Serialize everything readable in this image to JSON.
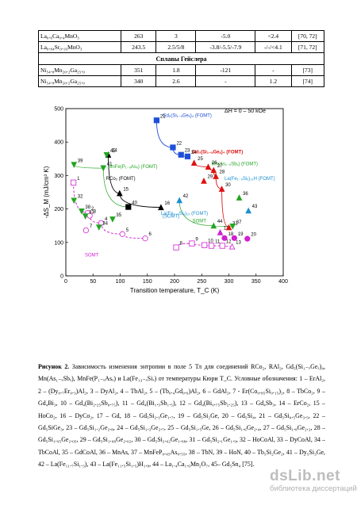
{
  "table": {
    "rows_top": [
      {
        "formula": "La₀.₆Ca₀.₄MnO₃",
        "c1": "263",
        "c2": "3",
        "c3": "-5.0",
        "c4": "<2.4",
        "ref": "[70, 72]"
      },
      {
        "formula": "La₀.₈₄Sr₀.₁₆MnO₃",
        "c1": "243.5",
        "c2": "2.5/5/8",
        "c3": "-3.8/-5.5/-7.9",
        "c4": "-/-/<4.1",
        "ref": "[71, 72]"
      }
    ],
    "section_title": "Сплавы Гейслера",
    "rows_bottom": [
      {
        "formula": "Ni₅₄.₈Mn₂₀.₂Ga₂₅.₀",
        "c1": "351",
        "c2": "1.8",
        "c3": "-121",
        "c4": "-",
        "ref": "[73]"
      },
      {
        "formula": "Ni₅₄.₈Mn₂₀.₂Ga₂₅.₀",
        "c1": "340",
        "c2": "2.6",
        "c3": "-",
        "c4": "1.2",
        "ref": "[74]"
      }
    ]
  },
  "chart_data": {
    "type": "scatter",
    "xlabel": "Transition temperature, T_C (K)",
    "ylabel": "-ΔS_M (mJ/cm³ K)",
    "xlim": [
      0,
      400
    ],
    "ylim": [
      0,
      500
    ],
    "xticks": [
      "0",
      "50",
      "100",
      "150",
      "200",
      "250",
      "300",
      "350",
      "400"
    ],
    "yticks": [
      "0",
      "100",
      "200",
      "300",
      "400",
      "500"
    ],
    "field_annotation": "ΔH = 0 – 50 kOe",
    "group_labels": [
      {
        "text": "Gd₅(Si₁₋ₓGeₓ)₄ (FOMT)",
        "color": "#1f4fd8"
      },
      {
        "text": "Gd₅(Si₁₋ₓGeₓ)₄ (FOMT)",
        "color": "#e01010"
      },
      {
        "text": "Mn(As₁₋ₓSbₓ) (FOMT)",
        "color": "#23a523"
      },
      {
        "text": "MnFe(P₁₋ₓAsₓ) (FOMT)",
        "color": "#23a523"
      },
      {
        "text": "La(Fe₁₋ₓSiₓ)₁₃H (FOMT)",
        "color": "#1a8fd1"
      },
      {
        "text": "RCo₂ (FOMT)",
        "color": "#000000"
      },
      {
        "text": "La(Fe₁₋ₓSiₓ)₁₃ (FOMT)",
        "color": "#1a8fd1"
      },
      {
        "text": "(SOMT)",
        "color": "#1a8fd1"
      },
      {
        "text": "SOMT",
        "color": "#23a523"
      },
      {
        "text": "SOMT",
        "color": "#d21fd2"
      }
    ],
    "points": [
      {
        "id": "1",
        "x": 14,
        "y": 279,
        "color": "#d21fd2",
        "marker": "square-open"
      },
      {
        "id": "2",
        "x": 40,
        "y": 188,
        "color": "#d21fd2",
        "marker": "circle-open"
      },
      {
        "id": "3",
        "x": 44,
        "y": 180,
        "color": "#d21fd2",
        "marker": "circle-open"
      },
      {
        "id": "4",
        "x": 65,
        "y": 158,
        "color": "#d21fd2",
        "marker": "circle-open"
      },
      {
        "id": "5",
        "x": 104,
        "y": 125,
        "color": "#d21fd2",
        "marker": "circle-open"
      },
      {
        "id": "6",
        "x": 146,
        "y": 112,
        "color": "#d21fd2",
        "marker": "circle-open"
      },
      {
        "id": "7",
        "x": 37,
        "y": 136,
        "color": "#d21fd2",
        "marker": "circle-open"
      },
      {
        "id": "8",
        "x": 203,
        "y": 85,
        "color": "#d21fd2",
        "marker": "square-open"
      },
      {
        "id": "9",
        "x": 232,
        "y": 97,
        "color": "#d21fd2",
        "marker": "square-open"
      },
      {
        "id": "10",
        "x": 255,
        "y": 92,
        "color": "#d21fd2",
        "marker": "square-open"
      },
      {
        "id": "11",
        "x": 268,
        "y": 90,
        "color": "#d21fd2",
        "marker": "square-open"
      },
      {
        "id": "12",
        "x": 288,
        "y": 90,
        "color": "#d21fd2",
        "marker": "square-open"
      },
      {
        "id": "13",
        "x": 306,
        "y": 88,
        "color": "#d21fd2",
        "marker": "triangle-open"
      },
      {
        "id": "14",
        "x": 78,
        "y": 362,
        "color": "#000000",
        "marker": "triangle"
      },
      {
        "id": "15",
        "x": 99,
        "y": 247,
        "color": "#000000",
        "marker": "triangle"
      },
      {
        "id": "16",
        "x": 175,
        "y": 205,
        "color": "#000000",
        "marker": "triangle"
      },
      {
        "id": "17",
        "x": 284,
        "y": 130,
        "color": "#d21fd2",
        "marker": "triangle"
      },
      {
        "id": "18",
        "x": 292,
        "y": 113,
        "color": "#d21fd2",
        "marker": "circle"
      },
      {
        "id": "19",
        "x": 310,
        "y": 113,
        "color": "#d21fd2",
        "marker": "circle"
      },
      {
        "id": "20",
        "x": 334,
        "y": 111,
        "color": "#d21fd2",
        "marker": "circle"
      },
      {
        "id": "21",
        "x": 167,
        "y": 465,
        "color": "#1f4fd8",
        "marker": "square"
      },
      {
        "id": "22",
        "x": 197,
        "y": 384,
        "color": "#1f4fd8",
        "marker": "square"
      },
      {
        "id": "23",
        "x": 212,
        "y": 362,
        "color": "#1f4fd8",
        "marker": "square"
      },
      {
        "id": "24",
        "x": 224,
        "y": 357,
        "color": "#1f4fd8",
        "marker": "square"
      },
      {
        "id": "25",
        "x": 236,
        "y": 338,
        "color": "#e01010",
        "marker": "triangle"
      },
      {
        "id": "26",
        "x": 262,
        "y": 326,
        "color": "#e01010",
        "marker": "triangle"
      },
      {
        "id": "27",
        "x": 272,
        "y": 316,
        "color": "#e01010",
        "marker": "triangle"
      },
      {
        "id": "28",
        "x": 276,
        "y": 298,
        "color": "#e01010",
        "marker": "triangle"
      },
      {
        "id": "29",
        "x": 254,
        "y": 284,
        "color": "#e01010",
        "marker": "triangle"
      },
      {
        "id": "30",
        "x": 287,
        "y": 260,
        "color": "#e01010",
        "marker": "triangle"
      },
      {
        "id": "31",
        "x": 300,
        "y": 145,
        "color": "#e01010",
        "marker": "triangle"
      },
      {
        "id": "32",
        "x": 15,
        "y": 225,
        "color": "#23a523",
        "marker": "triangle-down"
      },
      {
        "id": "33",
        "x": 36,
        "y": 178,
        "color": "#23a523",
        "marker": "triangle-down"
      },
      {
        "id": "34",
        "x": 61,
        "y": 145,
        "color": "#23a523",
        "marker": "triangle-down"
      },
      {
        "id": "35",
        "x": 86,
        "y": 169,
        "color": "#23a523",
        "marker": "triangle-down"
      },
      {
        "id": "36",
        "x": 319,
        "y": 234,
        "color": "#23a523",
        "marker": "triangle"
      },
      {
        "id": "37",
        "x": 307,
        "y": 148,
        "color": "#23a523",
        "marker": "triangle-down"
      },
      {
        "id": "38",
        "x": 29,
        "y": 193,
        "color": "#23a523",
        "marker": "triangle-down"
      },
      {
        "id": "39",
        "x": 15,
        "y": 332,
        "color": "#23a523",
        "marker": "triangle-down"
      },
      {
        "id": "40",
        "x": 115,
        "y": 206,
        "color": "#000000",
        "marker": "square"
      },
      {
        "id": "41",
        "x": 69,
        "y": 322,
        "color": "#23a523",
        "marker": "triangle-down"
      },
      {
        "id": "42",
        "x": 209,
        "y": 226,
        "color": "#1a8fd1",
        "marker": "triangle"
      },
      {
        "id": "43",
        "x": 336,
        "y": 195,
        "color": "#1a8fd1",
        "marker": "triangle"
      },
      {
        "id": "44",
        "x": 272,
        "y": 150,
        "color": "#23a523",
        "marker": "triangle"
      },
      {
        "id": "45",
        "x": 75,
        "y": 361,
        "color": "#23a523",
        "marker": "triangle-down"
      }
    ]
  },
  "caption": {
    "label": "Рисунок 2.",
    "text": "Зависимость изменения энтропии в поле 5 Тл для соединений RCo₂, RAl₂, Gd₅(Si₁₋ₓGeₓ)₄, Mn(As₁₋ₓSbₓ), MnFe(P₁₋ₓAsₓ) и La(Fe₁₃₋ₓSiₓ) от температуры Кюри T_C. Условные обозначения: 1 – ErAl₂, 2 – (Dy₀.₇Er₀.₃)Al₂, 3 – DyAl₂, 4 – TbAl₂, 5 – (Tb₀.₄Gd₀.₆)Al₂, 6 – GdAl₂, 7 - Er(Co₀.₈₅Si₀.₁₅)₂, 8 – TbCo₂, 9 – Gd₄Bi₃, 10 – Gd₄(Bi₂.₂₅Sb₀.₇₅), 11 – Gd₄(Bi₁.₅Sb₁.₅), 12 – Gd₄(Bi₀.₇₅Sb₂.₂₅), 13 – Gd₄Sb₃, 14 – ErCo₂, 15 – HoCo₂, 16 – DyCo₂, 17 – Gd, 18 – Gd₅Si₂.₃Ge₁.₇, 19 – Gd₅Si₂Ge, 20 – Gd₅Si₄, 21 – Gd₅Si₀.₅Ge₃.₅, 22 – Gd₅SiGe₃, 23 – Gd₅Si₁.₂Ge₂.₈, 24 – Gd₅Si₁.₃Ge₂.₇, 25 – Gd₅Si₁.₅Ge, 26 – Gd₅Si₁.₆Ge₂.₄, 27 – Gd₅Si₁.₈Ge₂.₂, 28 – Gd₅Si₁.₉₅Ge₂.₀₅, 29 – Gd₅Si₁.₉₈Ge₂.₀₂, 30 – Gd₅Si₂.₀₂Ge₁.₉₈, 31 – Gd₅Si₂.₁Ge₁.₉, 32 – HoCoAl, 33 – DyCoAl, 34 – TbCoAl, 35 – GdCoAl, 36 – MnAs, 37 – MnFeP₀.₄₅As₀.₅₅, 38 – TbN, 39 – HoN, 40 – Tb₅Si₂Ge₂, 41 – Dy₅Si₃Ge, 42 – La(Fe₁₁.₇Si₁.₃), 43 – La(Fe₁₁.₅Si₁.₅)H₁.₈, 44 – La₁.₄Ca₁.₆Mn₂O₇, 45– Gd₅Sn₄ [75]."
  },
  "watermark": {
    "logo": "dsLib.net",
    "subtitle": "библиотека диссертаций"
  }
}
